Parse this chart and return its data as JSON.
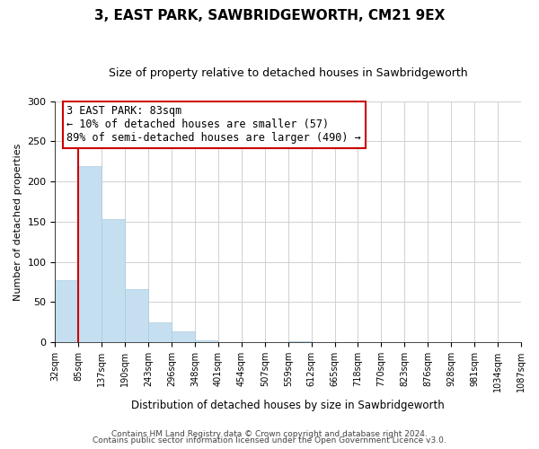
{
  "title": "3, EAST PARK, SAWBRIDGEWORTH, CM21 9EX",
  "subtitle": "Size of property relative to detached houses in Sawbridgeworth",
  "xlabel": "Distribution of detached houses by size in Sawbridgeworth",
  "ylabel": "Number of detached properties",
  "bar_color": "#c5dff0",
  "bar_edge_color": "#a8cce0",
  "annotation_box_edge_color": "#cc0000",
  "annotation_line_color": "#cc0000",
  "annotation_text_line1": "3 EAST PARK: 83sqm",
  "annotation_text_line2": "← 10% of detached houses are smaller (57)",
  "annotation_text_line3": "89% of semi-detached houses are larger (490) →",
  "tick_labels": [
    "32sqm",
    "85sqm",
    "137sqm",
    "190sqm",
    "243sqm",
    "296sqm",
    "348sqm",
    "401sqm",
    "454sqm",
    "507sqm",
    "559sqm",
    "612sqm",
    "665sqm",
    "718sqm",
    "770sqm",
    "823sqm",
    "876sqm",
    "928sqm",
    "981sqm",
    "1034sqm",
    "1087sqm"
  ],
  "bar_values": [
    77,
    219,
    153,
    66,
    25,
    13,
    2,
    0,
    0,
    0,
    1,
    0,
    0,
    0,
    0,
    0,
    0,
    0,
    0,
    0
  ],
  "ylim": [
    0,
    300
  ],
  "yticks": [
    0,
    50,
    100,
    150,
    200,
    250,
    300
  ],
  "footer_line1": "Contains HM Land Registry data © Crown copyright and database right 2024.",
  "footer_line2": "Contains public sector information licensed under the Open Government Licence v3.0.",
  "background_color": "#ffffff",
  "grid_color": "#d0d0d0",
  "property_bin_edge": 1
}
